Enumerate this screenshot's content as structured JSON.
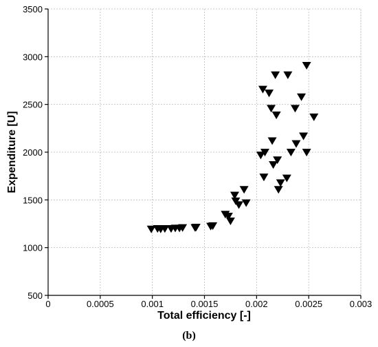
{
  "chart_data": {
    "type": "scatter",
    "title": "",
    "xlabel": "Total efficiency [-]",
    "ylabel": "Expenditure [U]",
    "xlim": [
      0,
      0.003
    ],
    "ylim": [
      500,
      3500
    ],
    "x_ticks": [
      "0",
      "0.0005",
      "0.001",
      "0.0015",
      "0.002",
      "0.0025",
      "0.003"
    ],
    "y_ticks": [
      "500",
      "1000",
      "1500",
      "2000",
      "2500",
      "3000",
      "3500"
    ],
    "grid": true,
    "marker": "down-triangle",
    "marker_color": "#000000",
    "panel_label": "(b)",
    "series": [
      {
        "points": [
          [
            0.00099,
            1195
          ],
          [
            0.00105,
            1200
          ],
          [
            0.00108,
            1195
          ],
          [
            0.00112,
            1200
          ],
          [
            0.00118,
            1200
          ],
          [
            0.00122,
            1205
          ],
          [
            0.00126,
            1205
          ],
          [
            0.00129,
            1210
          ],
          [
            0.00141,
            1210
          ],
          [
            0.00142,
            1215
          ],
          [
            0.00156,
            1225
          ],
          [
            0.00158,
            1230
          ],
          [
            0.0017,
            1350
          ],
          [
            0.00173,
            1330
          ],
          [
            0.00175,
            1280
          ],
          [
            0.00179,
            1550
          ],
          [
            0.0018,
            1490
          ],
          [
            0.00183,
            1450
          ],
          [
            0.00188,
            1610
          ],
          [
            0.0019,
            1470
          ],
          [
            0.00204,
            1970
          ],
          [
            0.00206,
            2660
          ],
          [
            0.00207,
            1740
          ],
          [
            0.00208,
            2000
          ],
          [
            0.00212,
            2620
          ],
          [
            0.00214,
            2460
          ],
          [
            0.00215,
            2120
          ],
          [
            0.00216,
            1870
          ],
          [
            0.00218,
            2810
          ],
          [
            0.00219,
            2390
          ],
          [
            0.0022,
            1920
          ],
          [
            0.00221,
            1610
          ],
          [
            0.00223,
            1680
          ],
          [
            0.00229,
            1730
          ],
          [
            0.0023,
            2810
          ],
          [
            0.00233,
            2000
          ],
          [
            0.00237,
            2460
          ],
          [
            0.00238,
            2090
          ],
          [
            0.00243,
            2580
          ],
          [
            0.00245,
            2170
          ],
          [
            0.00248,
            2000
          ],
          [
            0.00248,
            2910
          ],
          [
            0.00255,
            2370
          ]
        ]
      }
    ]
  }
}
